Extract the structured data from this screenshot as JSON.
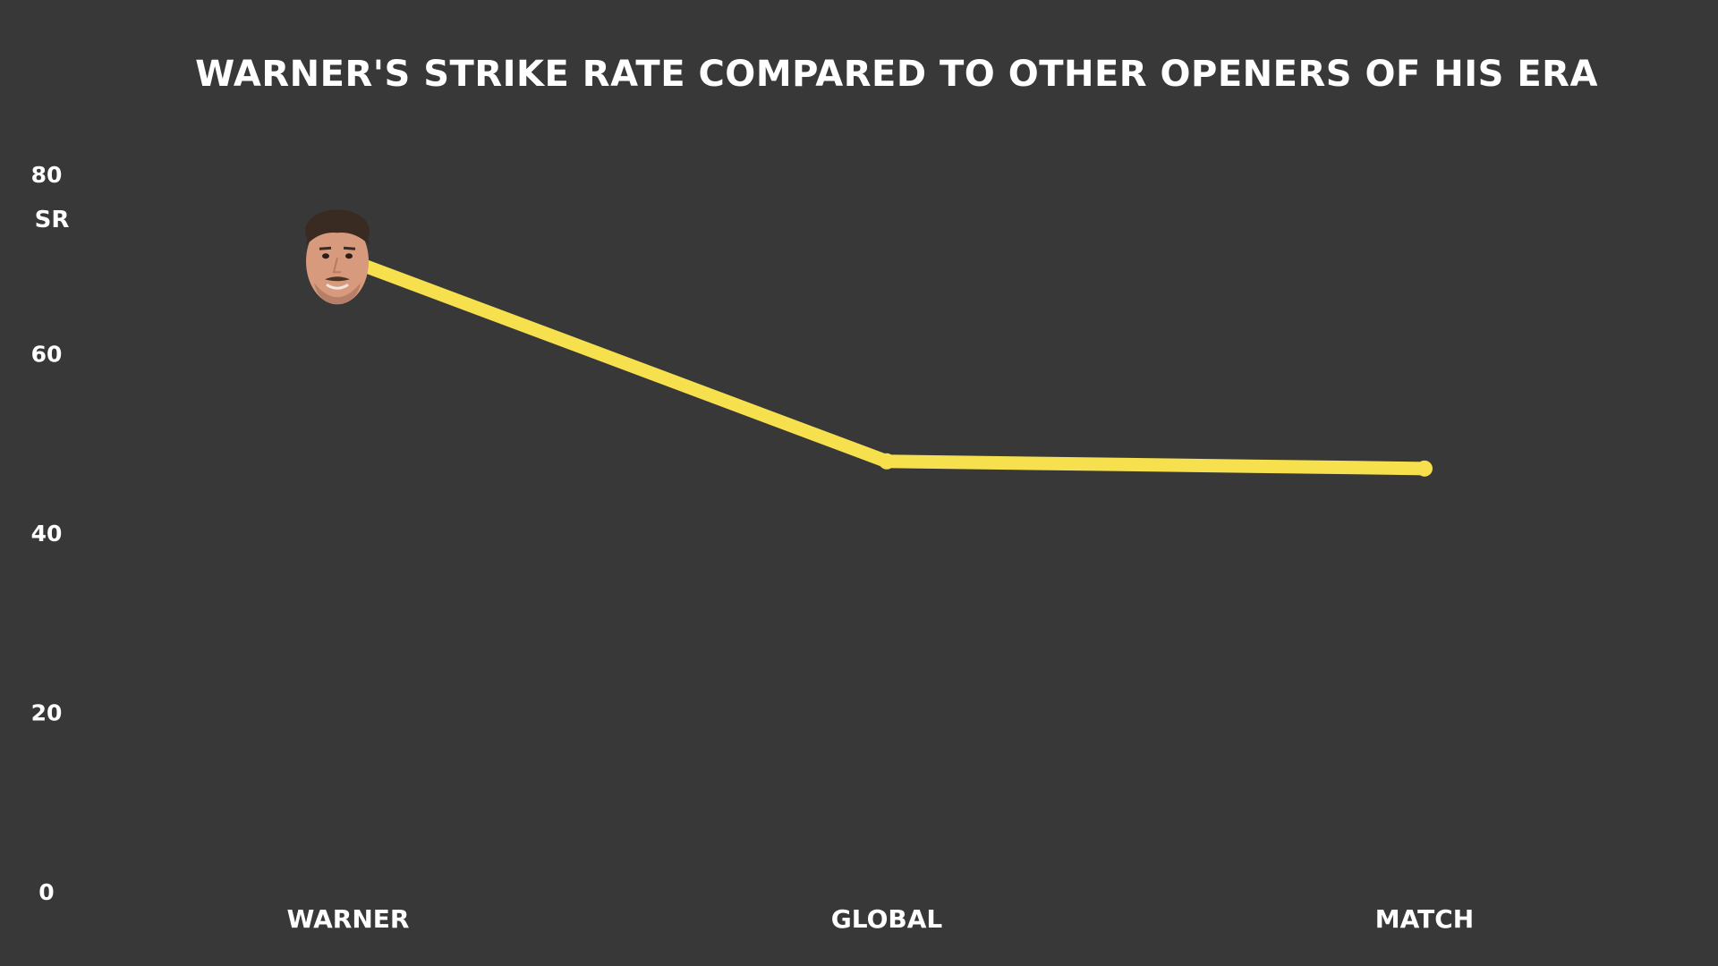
{
  "chart_data": {
    "type": "line",
    "title": "WARNER'S STRIKE RATE COMPARED TO OTHER OPENERS OF HIS ERA",
    "xlabel": "",
    "ylabel": "SR",
    "categories": [
      "WARNER",
      "GLOBAL",
      "MATCH"
    ],
    "series": [
      {
        "values": [
          70.5,
          48.0,
          47.2
        ]
      }
    ],
    "ylim": [
      0,
      80
    ],
    "yticks": [
      0,
      20,
      40,
      60,
      80
    ],
    "grid": false,
    "legend": "none",
    "marker_image": "player-headshot"
  },
  "colors": {
    "background": "#383838",
    "line": "#F7E04E",
    "text": "#FFFFFF"
  }
}
